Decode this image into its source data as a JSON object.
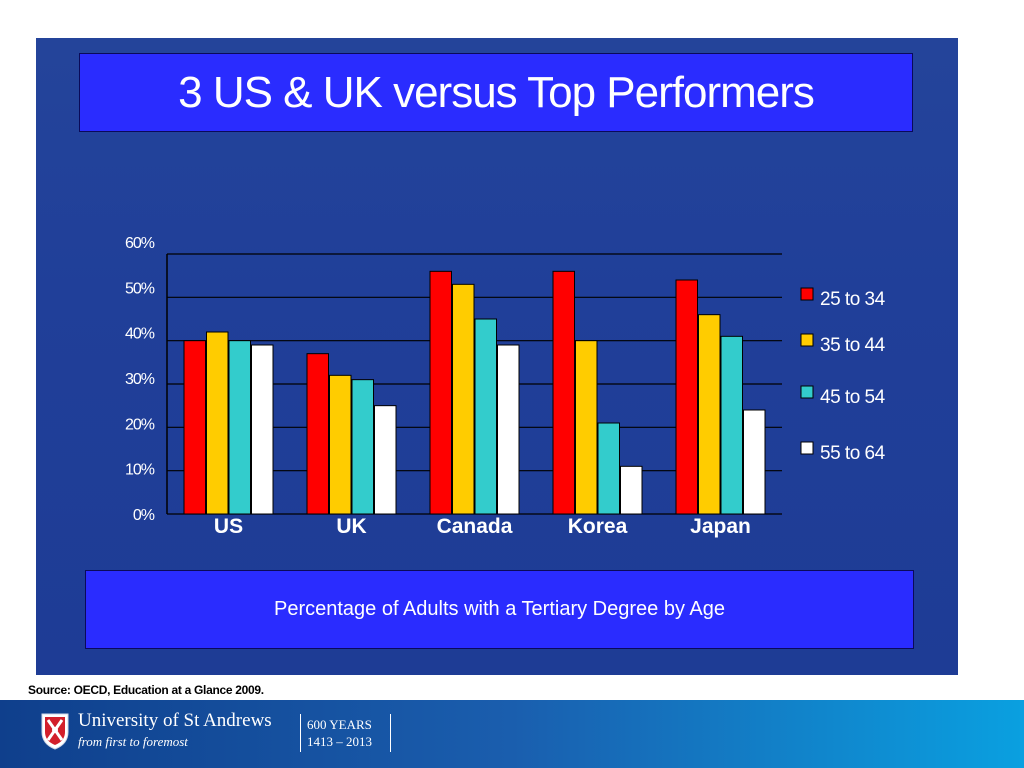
{
  "title": "3 US & UK versus Top Performers",
  "caption": "Percentage of Adults with a Tertiary Degree by Age",
  "source": "Source: OECD, Education at a Glance 2009.",
  "footer": {
    "university": "University of St Andrews",
    "tagline": "from first to foremost",
    "anniversary": "600 YEARS",
    "years_range": "1413 – 2013"
  },
  "colors": {
    "slide_background": "#203f99",
    "box_fill": "#2a2cff",
    "series": [
      "#ff0000",
      "#ffcc00",
      "#33cccc",
      "#ffffff"
    ]
  },
  "chart_data": {
    "type": "bar",
    "categories": [
      "US",
      "UK",
      "Canada",
      "Korea",
      "Japan"
    ],
    "series": [
      {
        "name": "25 to 34",
        "values": [
          40,
          37,
          56,
          56,
          54
        ]
      },
      {
        "name": "35 to 44",
        "values": [
          42,
          32,
          53,
          40,
          46
        ]
      },
      {
        "name": "45 to 54",
        "values": [
          40,
          31,
          45,
          21,
          41
        ]
      },
      {
        "name": "55 to 64",
        "values": [
          39,
          25,
          39,
          11,
          24
        ]
      }
    ],
    "ylim": [
      0,
      60
    ],
    "yticks": [
      "0%",
      "10%",
      "20%",
      "30%",
      "40%",
      "50%",
      "60%"
    ],
    "grid": true,
    "legend": "right"
  }
}
